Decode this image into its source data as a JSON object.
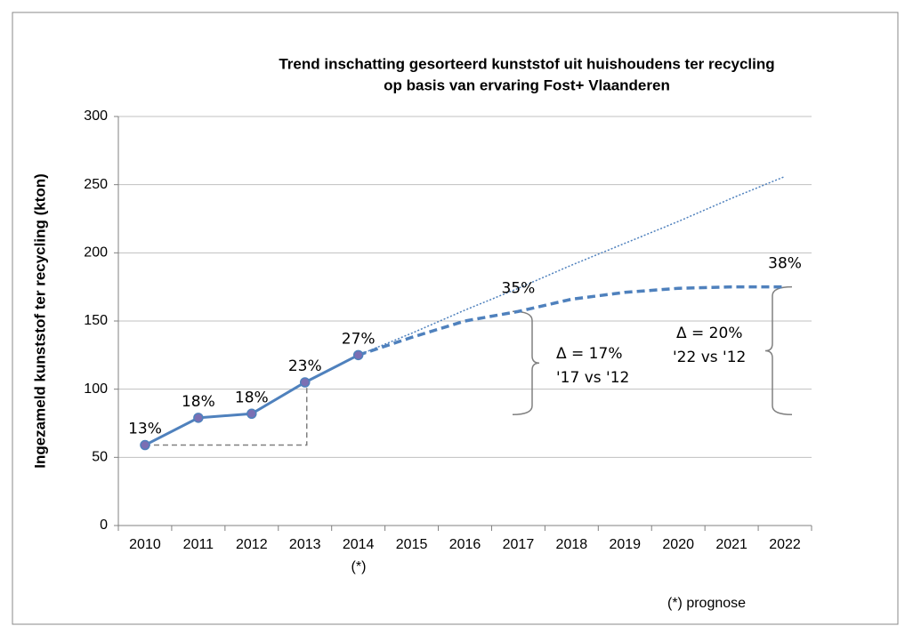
{
  "chart_data": {
    "type": "line",
    "title": [
      "Trend inschatting gesorteerd kunststof uit huishoudens ter recycling",
      "op basis van ervaring Fost+ Vlaanderen"
    ],
    "y_label": "Ingezameld kunststof ter recycling (kton)",
    "categories": [
      "2010",
      "2011",
      "2012",
      "2013",
      "2014",
      "2015",
      "2016",
      "2017",
      "2018",
      "2019",
      "2020",
      "2021",
      "2022"
    ],
    "tick_note": "(*)",
    "footnote": "(*) prognose",
    "ylim": [
      0,
      300
    ],
    "yticks": [
      0,
      50,
      100,
      150,
      200,
      250,
      300
    ],
    "grid": true,
    "series": [
      {
        "color": "#4f81bd",
        "style": "solid",
        "marker_color": "#7b6fb3",
        "values": [
          59,
          79,
          82,
          105,
          125,
          null,
          null,
          null,
          null,
          null,
          null,
          null,
          null
        ],
        "point_labels": [
          "13%",
          "18%",
          "18%",
          "23%",
          "27%",
          null,
          null,
          null,
          null,
          null,
          null,
          null,
          null
        ]
      },
      {
        "color": "#4f81bd",
        "style": "dashed",
        "values": [
          null,
          null,
          null,
          null,
          125,
          138,
          150,
          157,
          166,
          171,
          174,
          175,
          175
        ],
        "point_labels": [
          null,
          null,
          null,
          null,
          null,
          null,
          null,
          "35%",
          null,
          null,
          null,
          null,
          "38%"
        ]
      },
      {
        "color": "#4f81bd",
        "style": "dotted",
        "values": [
          null,
          null,
          null,
          null,
          125,
          141,
          158,
          174,
          191,
          207,
          223,
          240,
          256
        ]
      }
    ],
    "annotations": [
      "Δ = 17%",
      "'17 vs '12",
      "Δ = 20%",
      "'22 vs '12"
    ]
  }
}
